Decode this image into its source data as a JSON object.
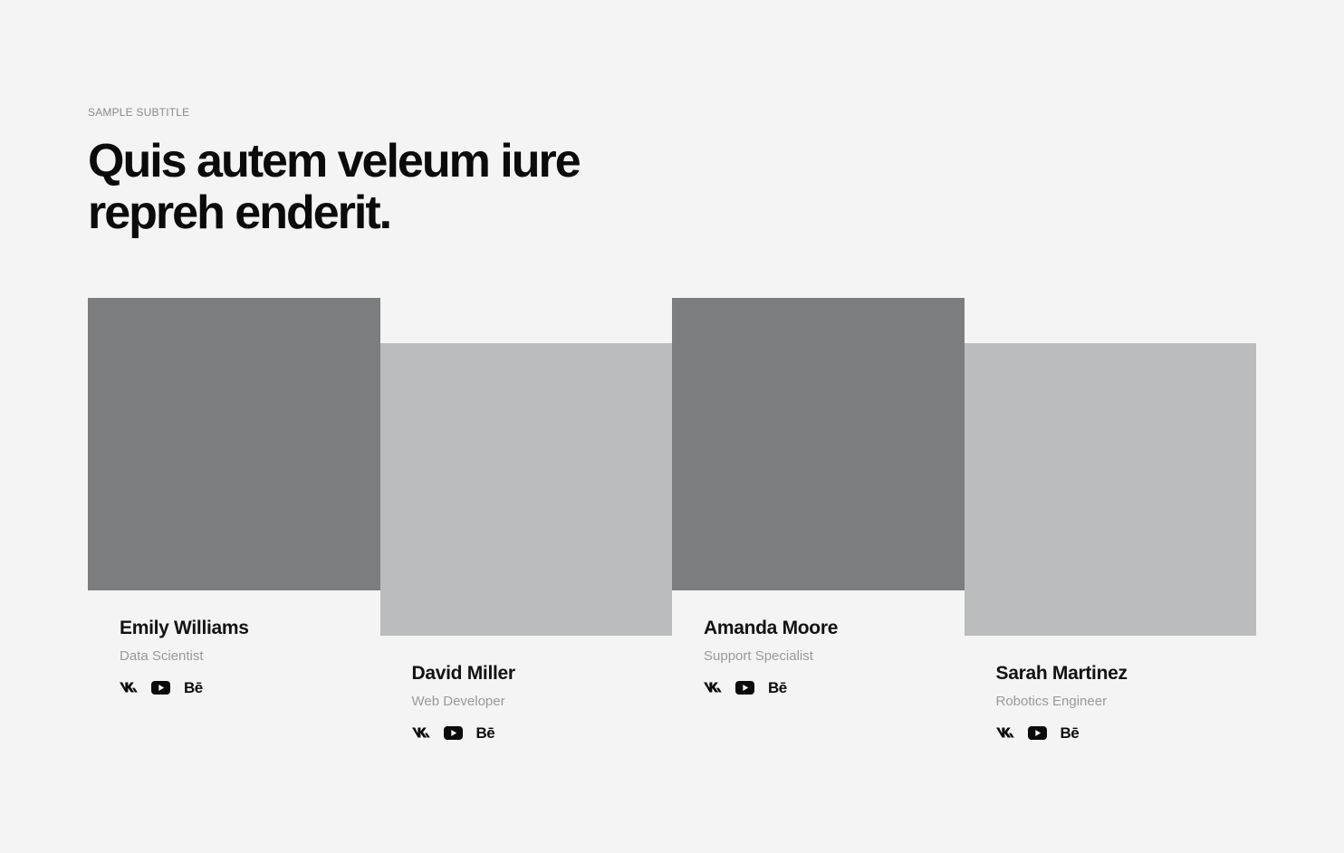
{
  "section": {
    "subtitle": "SAMPLE SUBTITLE",
    "heading": "Quis autem veleum iure repreh enderit."
  },
  "team": [
    {
      "name": "Emily Williams",
      "role": "Data Scientist",
      "photo_shade": "dark",
      "socials": [
        "vk-icon",
        "youtube-icon",
        "behance-icon"
      ]
    },
    {
      "name": "David Miller",
      "role": "Web Developer",
      "photo_shade": "light",
      "socials": [
        "vk-icon",
        "youtube-icon",
        "behance-icon"
      ]
    },
    {
      "name": "Amanda Moore",
      "role": "Support Specialist",
      "photo_shade": "dark",
      "socials": [
        "vk-icon",
        "youtube-icon",
        "behance-icon"
      ]
    },
    {
      "name": "Sarah Martinez",
      "role": "Robotics Engineer",
      "photo_shade": "light",
      "socials": [
        "vk-icon",
        "youtube-icon",
        "behance-icon"
      ]
    }
  ],
  "social_labels": {
    "behance": "Bē"
  },
  "colors": {
    "background": "#f4f4f4",
    "photo_dark": "#7c7d7e",
    "photo_light": "#bbbcbd",
    "text_primary": "#121212",
    "text_muted": "#9a9a9a"
  }
}
